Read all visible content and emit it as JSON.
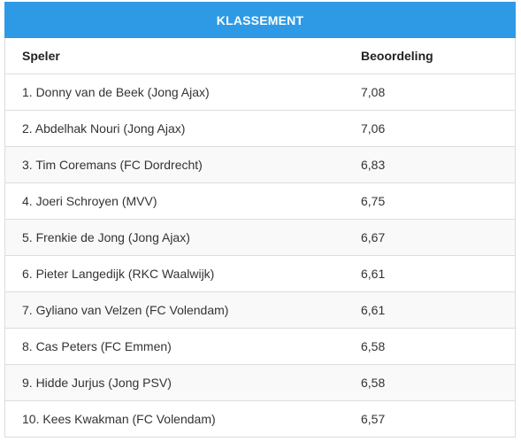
{
  "table": {
    "title": "KLASSEMENT",
    "headers": {
      "player": "Speler",
      "rating": "Beoordeling"
    },
    "rows": [
      {
        "player": "1. Donny van de Beek (Jong Ajax)",
        "rating": "7,08"
      },
      {
        "player": "2. Abdelhak Nouri (Jong Ajax)",
        "rating": "7,06"
      },
      {
        "player": "3. Tim Coremans (FC Dordrecht)",
        "rating": "6,83"
      },
      {
        "player": "4. Joeri Schroyen (MVV)",
        "rating": "6,75"
      },
      {
        "player": "5. Frenkie de Jong (Jong Ajax)",
        "rating": "6,67"
      },
      {
        "player": "6. Pieter Langedijk (RKC Waalwijk)",
        "rating": "6,61"
      },
      {
        "player": "7. Gyliano van Velzen (FC Volendam)",
        "rating": "6,61"
      },
      {
        "player": "8. Cas Peters (FC Emmen)",
        "rating": "6,58"
      },
      {
        "player": "9. Hidde Jurjus (Jong PSV)",
        "rating": "6,58"
      },
      {
        "player": "10. Kees Kwakman (FC Volendam)",
        "rating": "6,57"
      }
    ]
  }
}
